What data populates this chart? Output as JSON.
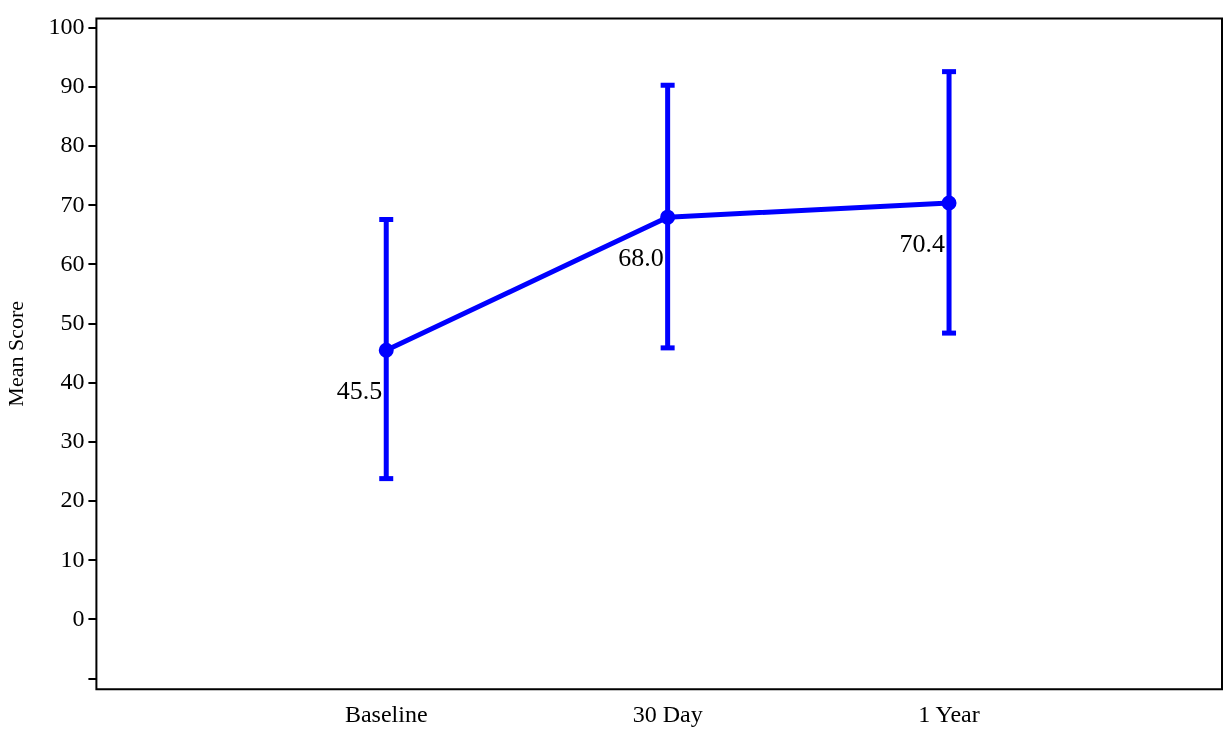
{
  "chart_data": {
    "type": "line",
    "ylabel": "Mean Score",
    "categories": [
      "Baseline",
      "30 Day",
      "1 Year"
    ],
    "series": [
      {
        "color": "#0000ff",
        "values": [
          45.5,
          68.0,
          70.4
        ],
        "value_labels": [
          "45.5",
          "68.0",
          "70.4"
        ],
        "errors": [
          [
            23.8,
            67.6
          ],
          [
            45.9,
            90.3
          ],
          [
            48.4,
            92.6
          ]
        ]
      }
    ],
    "ylim": [
      -11.8,
      101.6
    ],
    "yticks": [
      {
        "value": -10,
        "label": null
      },
      0,
      10,
      20,
      30,
      40,
      50,
      60,
      70,
      80,
      90,
      100
    ],
    "grid": false,
    "legend": false,
    "marker": "circle",
    "line_style": "solid"
  }
}
